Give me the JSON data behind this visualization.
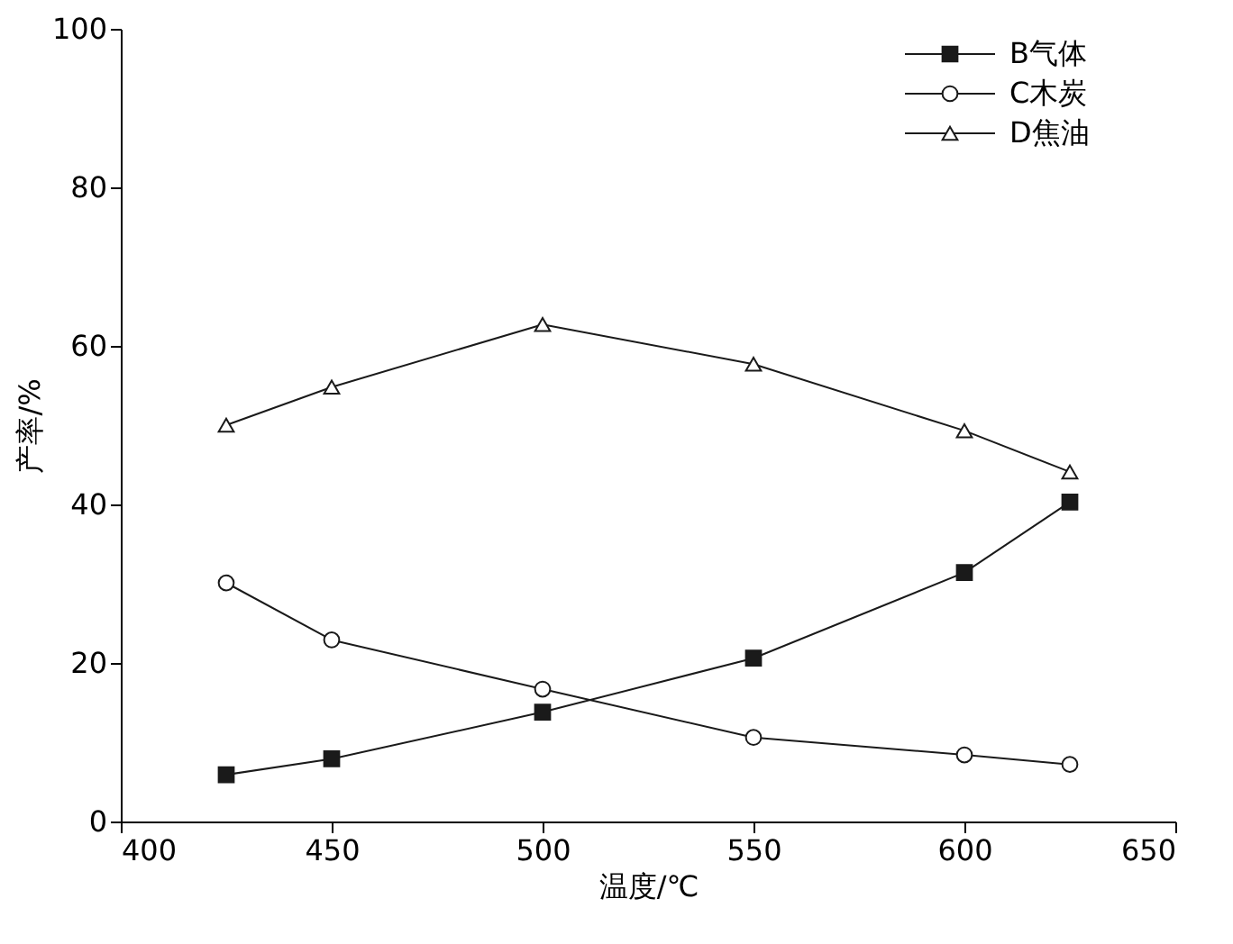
{
  "chart_data": {
    "type": "line",
    "xlabel": "温度/℃",
    "ylabel": "产率/%",
    "x": [
      425,
      450,
      500,
      550,
      600,
      625
    ],
    "series": [
      {
        "name": "B气体",
        "color": "#1a1a1a",
        "marker": "square",
        "values": [
          5.9,
          7.9,
          13.8,
          20.6,
          31.4,
          40.3
        ]
      },
      {
        "name": "C木炭",
        "color": "#1a1a1a",
        "marker": "circle",
        "values": [
          30.1,
          22.9,
          16.7,
          10.6,
          8.4,
          7.2
        ]
      },
      {
        "name": "D焦油",
        "color": "#1a1a1a",
        "marker": "triangle",
        "values": [
          50,
          54.8,
          62.7,
          57.7,
          49.3,
          44.1
        ]
      }
    ],
    "xlim": [
      400,
      650
    ],
    "xticks": [
      400,
      450,
      500,
      550,
      600,
      650
    ],
    "ylim": [
      0,
      100
    ],
    "yticks": [
      0,
      20,
      40,
      60,
      80,
      100
    ],
    "grid": false,
    "legend": "top right",
    "line_style": "solid"
  }
}
